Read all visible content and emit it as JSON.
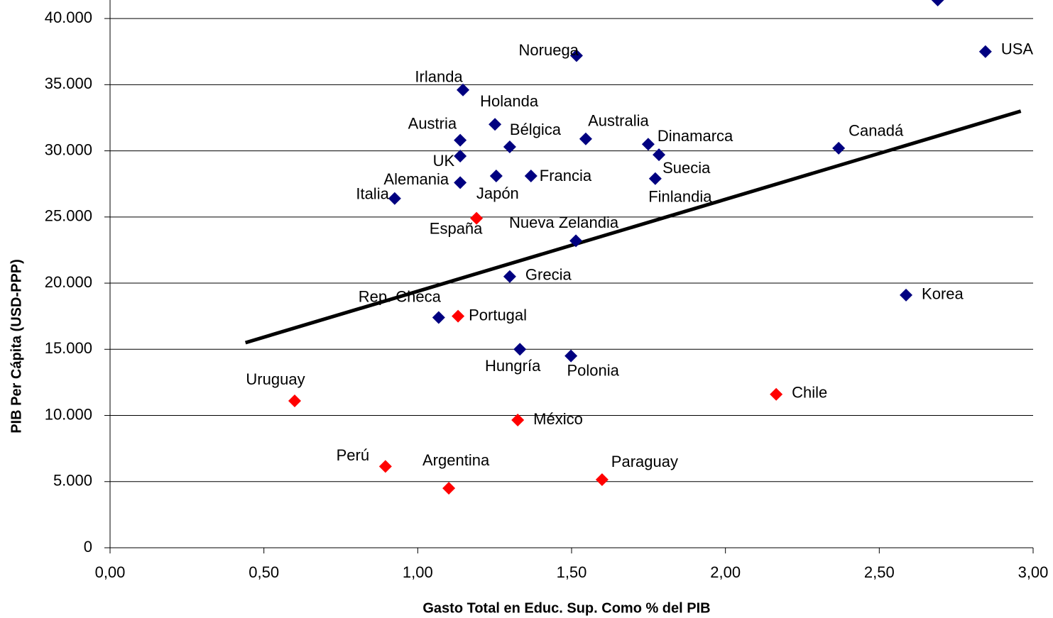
{
  "chart_data": {
    "type": "scatter",
    "xlabel": "Gasto Total en Educ. Sup. Como % del PIB",
    "ylabel": "PIB Per Cápita (USD-PPP)",
    "xlim": [
      0,
      3
    ],
    "ylim": [
      0,
      41400
    ],
    "xticks": [
      {
        "value": 0,
        "label": "0,00"
      },
      {
        "value": 0.5,
        "label": "0,50"
      },
      {
        "value": 1,
        "label": "1,00"
      },
      {
        "value": 1.5,
        "label": "1,50"
      },
      {
        "value": 2,
        "label": "2,00"
      },
      {
        "value": 2.5,
        "label": "2,50"
      },
      {
        "value": 3,
        "label": "3,00"
      }
    ],
    "yticks": [
      0,
      {
        "value": 5000,
        "label": "5.000"
      },
      {
        "value": 10000,
        "label": "10.000"
      },
      {
        "value": 15000,
        "label": "15.000"
      },
      {
        "value": 20000,
        "label": "20.000"
      },
      {
        "value": 25000,
        "label": "25.000"
      },
      {
        "value": 30000,
        "label": "30.000"
      },
      {
        "value": 35000,
        "label": "35.000"
      },
      {
        "value": 40000,
        "label": "40.000"
      }
    ],
    "grid": true,
    "series": [
      {
        "color": "#000080",
        "labels": [
          "Noruega",
          "USA",
          "Irlanda",
          "Holanda",
          "Austria",
          "Bélgica",
          "Australia",
          "Dinamarca",
          "Suecia",
          "Finlandia",
          "Canadá",
          "UK",
          "Alemania",
          "Japón",
          "Francia",
          "Italia",
          "Nueva Zelandia",
          "Grecia",
          "Rep. Checa",
          "Korea",
          "Hungría",
          "Polonia",
          null
        ],
        "x": [
          1.516,
          2.845,
          1.147,
          1.251,
          1.138,
          1.299,
          1.546,
          1.749,
          1.784,
          1.772,
          2.368,
          1.138,
          1.138,
          1.255,
          1.368,
          0.925,
          1.514,
          1.299,
          1.068,
          2.587,
          1.332,
          1.498,
          2.69
        ],
        "values": [
          37200,
          37500,
          34600,
          32000,
          30800,
          30300,
          30900,
          30500,
          29700,
          27900,
          30200,
          29600,
          27600,
          28100,
          28100,
          26400,
          23200,
          20500,
          17400,
          19100,
          15000,
          14500,
          41400
        ]
      },
      {
        "color": "#ff0000",
        "labels": [
          "España",
          "Portugal",
          "Uruguay",
          "Chile",
          "México",
          "Perú",
          "Argentina",
          "Paraguay"
        ],
        "x": [
          1.191,
          1.131,
          0.6,
          2.165,
          1.325,
          0.895,
          1.101,
          1.599
        ],
        "values": [
          24900,
          17500,
          11100,
          11600,
          9650,
          6150,
          4500,
          5150
        ]
      }
    ],
    "trendline": {
      "color": "#000000",
      "x": [
        0.44,
        2.96
      ],
      "values": [
        15500,
        33000
      ]
    }
  }
}
